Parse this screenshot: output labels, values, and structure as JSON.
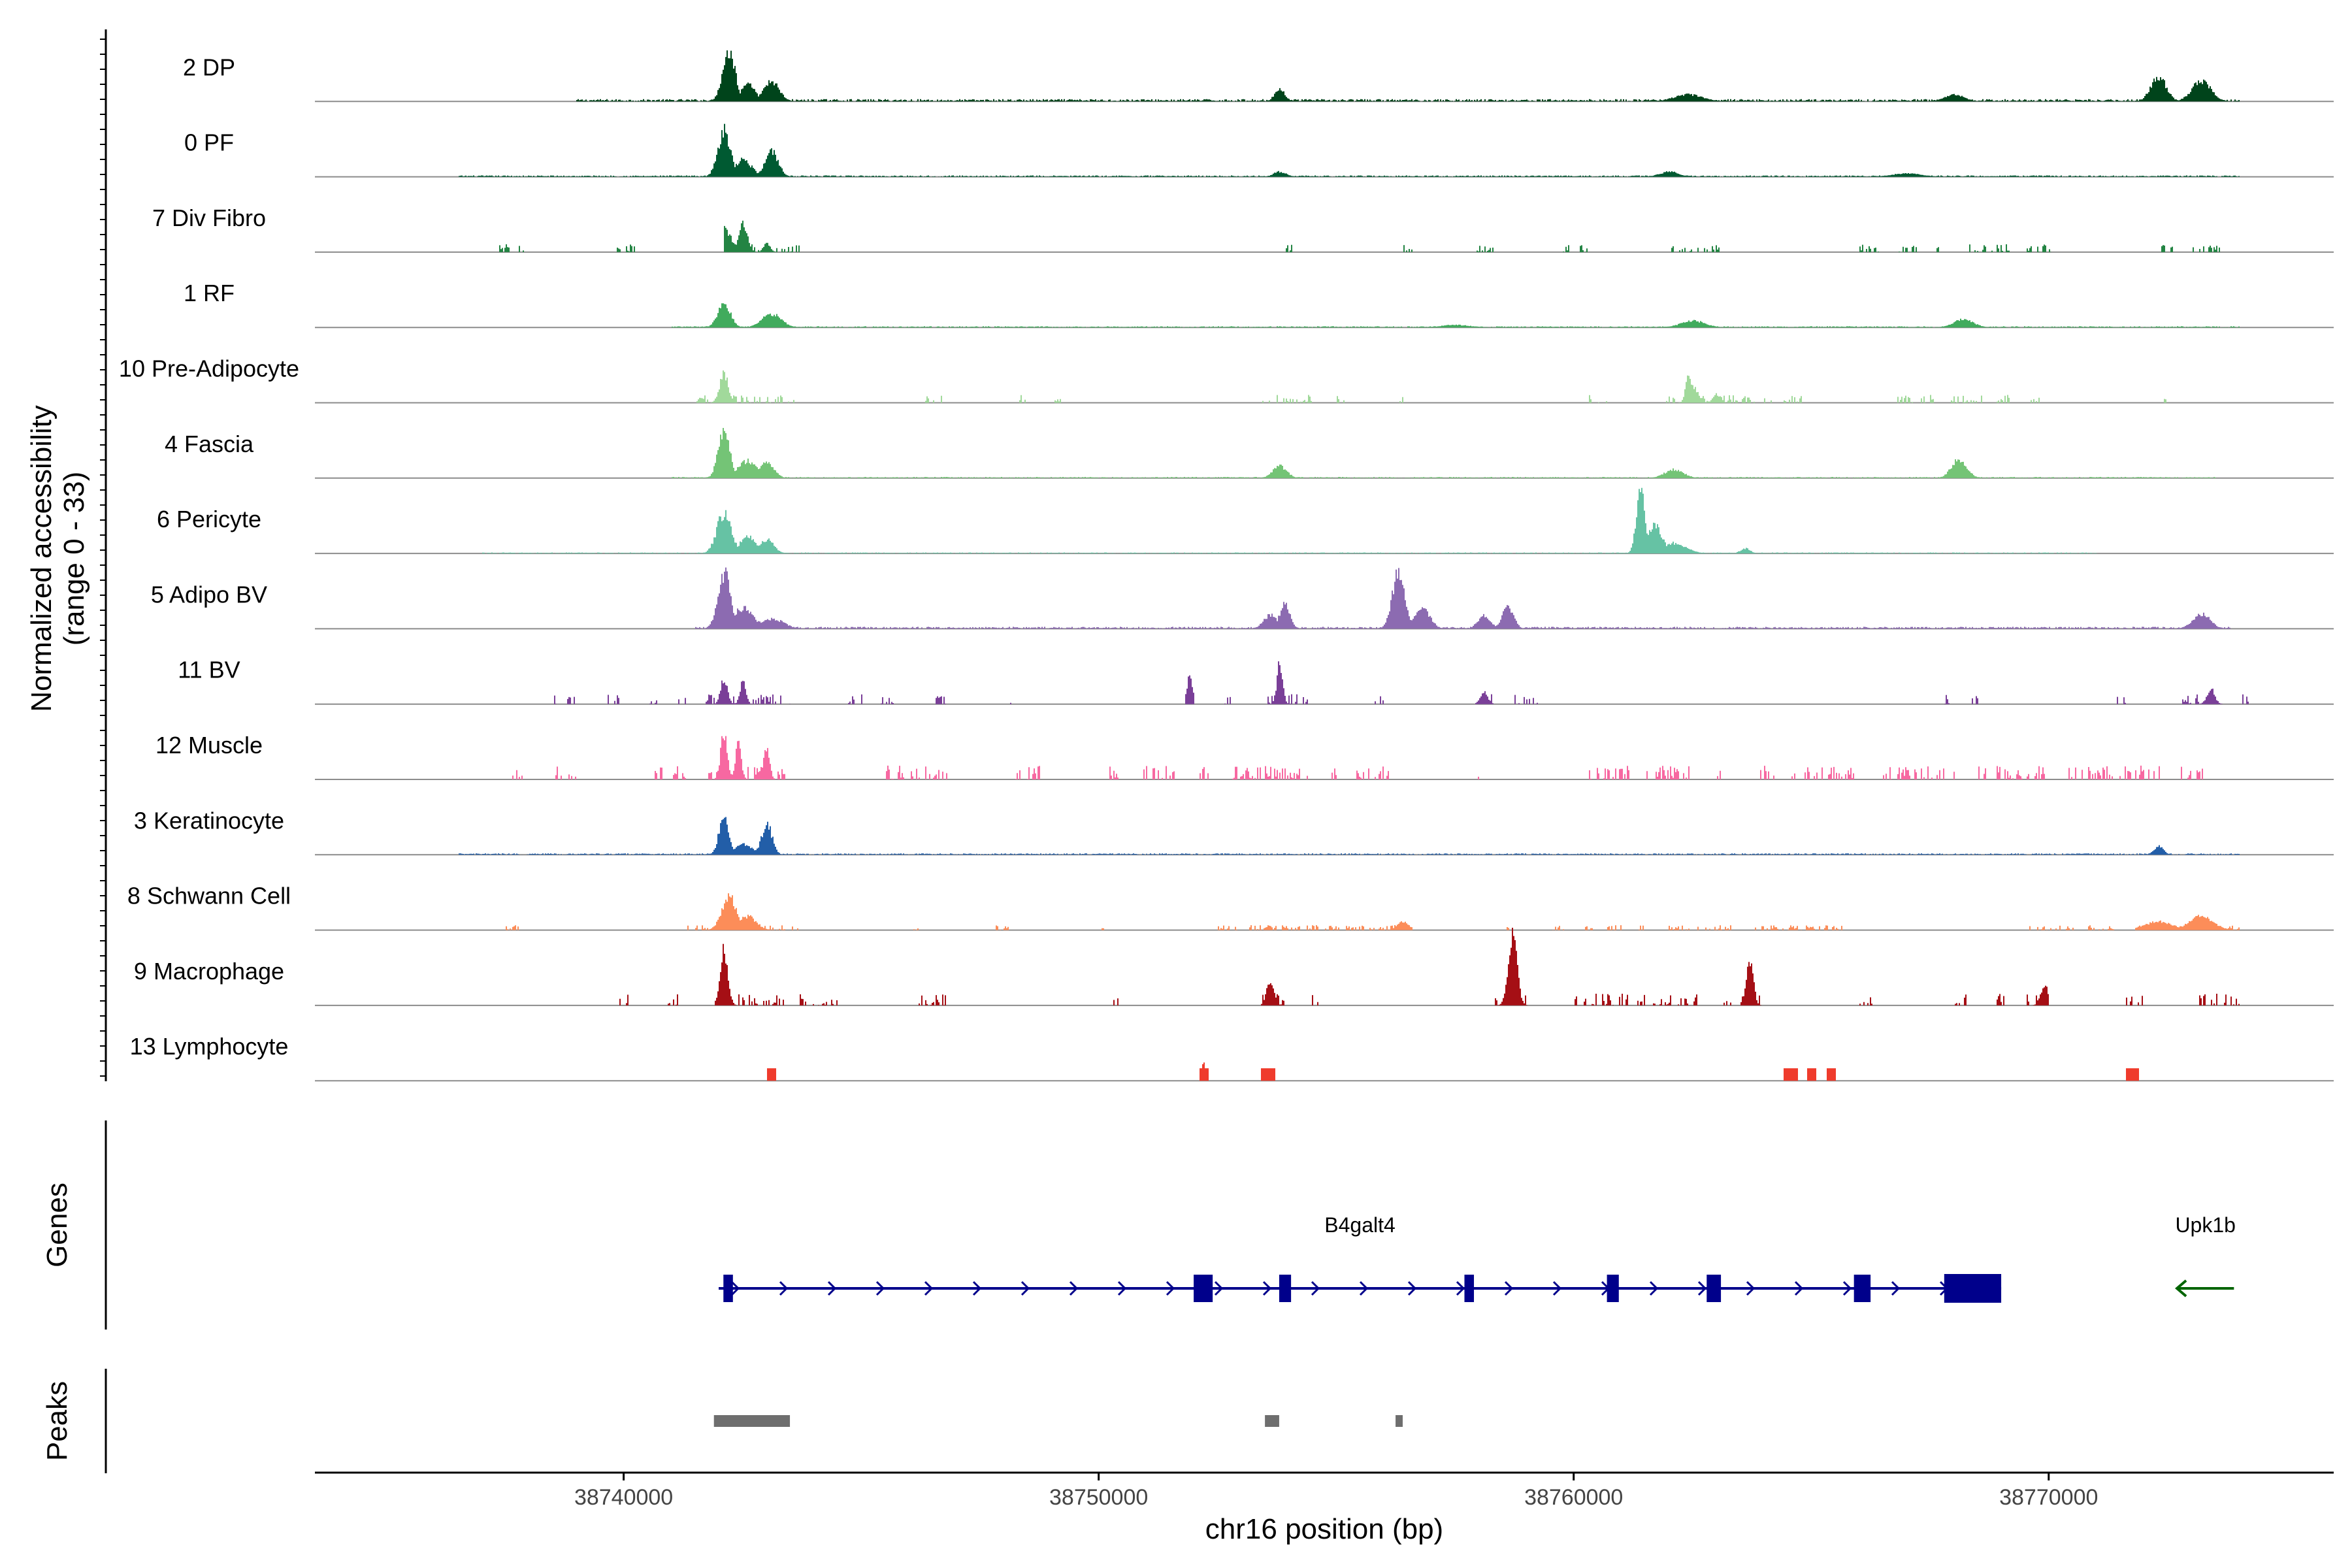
{
  "chart_data": {
    "type": "area",
    "title": "",
    "y_axis_label": "Normalized accessibility",
    "y_axis_sublabel": "(range 0 - 33)",
    "ylim": [
      0,
      33
    ],
    "x_axis_label": "chr16 position (bp)",
    "xlim": [
      38733500,
      38776000
    ],
    "x_ticks": [
      {
        "value": 38740000,
        "label": "38740000"
      },
      {
        "value": 38750000,
        "label": "38750000"
      },
      {
        "value": 38760000,
        "label": "38760000"
      },
      {
        "value": 38770000,
        "label": "38770000"
      }
    ],
    "tracks": [
      {
        "name": "2 DP",
        "color": "#00441b",
        "peaks": [
          [
            38742200,
            30,
            130
          ],
          [
            38742600,
            10,
            150
          ],
          [
            38743100,
            12,
            160
          ],
          [
            38753800,
            7,
            110
          ],
          [
            38772300,
            15,
            160
          ],
          [
            38773200,
            12,
            200
          ],
          [
            38762400,
            4,
            300
          ],
          [
            38768000,
            4,
            200
          ]
        ],
        "regions": [
          [
            38739000,
            38774000
          ]
        ],
        "noise": 1.2,
        "sparse": false
      },
      {
        "name": "0 PF",
        "color": "#005a32",
        "peaks": [
          [
            38742100,
            27,
            130
          ],
          [
            38742500,
            10,
            180
          ],
          [
            38743100,
            15,
            140
          ],
          [
            38753800,
            3,
            130
          ],
          [
            38762000,
            3,
            200
          ],
          [
            38767000,
            2,
            300
          ]
        ],
        "regions": [
          [
            38736500,
            38774000
          ]
        ],
        "noise": 0.7,
        "sparse": false
      },
      {
        "name": "7 Div Fibro",
        "color": "#238443",
        "peaks": [
          [
            38742100,
            14,
            150
          ],
          [
            38742500,
            16,
            90
          ],
          [
            38743000,
            5,
            70
          ]
        ],
        "regions": [
          [
            38737300,
            38737900
          ],
          [
            38739800,
            38740300
          ],
          [
            38742100,
            38743700
          ],
          [
            38753900,
            38754050
          ],
          [
            38756400,
            38756600
          ],
          [
            38757900,
            38758300
          ],
          [
            38759700,
            38760300
          ],
          [
            38762000,
            38763100
          ],
          [
            38766000,
            38766400
          ],
          [
            38766800,
            38767200
          ],
          [
            38767600,
            38767900
          ],
          [
            38768300,
            38769200
          ],
          [
            38769500,
            38770100
          ],
          [
            38772300,
            38772600
          ],
          [
            38773000,
            38773600
          ]
        ],
        "noise": 4,
        "sparse": true
      },
      {
        "name": "1 RF",
        "color": "#41ab5d",
        "peaks": [
          [
            38742100,
            15,
            130
          ],
          [
            38743100,
            8,
            200
          ],
          [
            38762500,
            4,
            250
          ],
          [
            38768200,
            5,
            200
          ],
          [
            38757500,
            1.5,
            300
          ]
        ],
        "regions": [
          [
            38741000,
            38774000
          ]
        ],
        "noise": 0.6,
        "sparse": false
      },
      {
        "name": "10 Pre-Adipocyte",
        "color": "#a1d99b",
        "peaks": [
          [
            38742100,
            17,
            90
          ],
          [
            38762400,
            15,
            60
          ],
          [
            38762500,
            10,
            100
          ],
          [
            38763000,
            5,
            80
          ]
        ],
        "regions": [
          [
            38741500,
            38743600
          ],
          [
            38746300,
            38746700
          ],
          [
            38748300,
            38748500
          ],
          [
            38749000,
            38749200
          ],
          [
            38753400,
            38754500
          ],
          [
            38755000,
            38755200
          ],
          [
            38756300,
            38756500
          ],
          [
            38760300,
            38760800
          ],
          [
            38761900,
            38763800
          ],
          [
            38764000,
            38764800
          ],
          [
            38766800,
            38767600
          ],
          [
            38767900,
            38768600
          ],
          [
            38768900,
            38769200
          ],
          [
            38769600,
            38769800
          ],
          [
            38772400,
            38772600
          ]
        ],
        "noise": 4,
        "sparse": true
      },
      {
        "name": "4 Fascia",
        "color": "#74c476",
        "peaks": [
          [
            38742100,
            28,
            120
          ],
          [
            38742600,
            10,
            200
          ],
          [
            38743000,
            9,
            150
          ],
          [
            38753800,
            7,
            150
          ],
          [
            38762100,
            5,
            200
          ],
          [
            38768100,
            11,
            160
          ]
        ],
        "regions": [
          [
            38741000,
            38773500
          ]
        ],
        "noise": 0.6,
        "sparse": false
      },
      {
        "name": "6 Pericyte",
        "color": "#66c2a4",
        "peaks": [
          [
            38742100,
            24,
            150
          ],
          [
            38742600,
            10,
            160
          ],
          [
            38743000,
            8,
            150
          ],
          [
            38761400,
            38,
            90
          ],
          [
            38761700,
            16,
            150
          ],
          [
            38762100,
            6,
            250
          ],
          [
            38763600,
            3,
            100
          ]
        ],
        "regions": [
          [
            38737000,
            38771000
          ]
        ],
        "noise": 0.5,
        "sparse": false
      },
      {
        "name": "5 Adipo BV",
        "color": "#8c6bb1",
        "peaks": [
          [
            38742100,
            33,
            130
          ],
          [
            38742500,
            12,
            220
          ],
          [
            38743100,
            6,
            250
          ],
          [
            38753600,
            8,
            140
          ],
          [
            38753900,
            14,
            110
          ],
          [
            38756300,
            34,
            130
          ],
          [
            38756800,
            12,
            160
          ],
          [
            38758100,
            8,
            130
          ],
          [
            38758600,
            13,
            120
          ],
          [
            38773200,
            9,
            180
          ]
        ],
        "regions": [
          [
            38741500,
            38773800
          ]
        ],
        "noise": 1,
        "sparse": false
      },
      {
        "name": "11 BV",
        "color": "#7a3f98",
        "peaks": [
          [
            38742100,
            15,
            70
          ],
          [
            38742500,
            14,
            60
          ],
          [
            38751900,
            16,
            60
          ],
          [
            38753800,
            24,
            60
          ],
          [
            38758100,
            7,
            80
          ],
          [
            38773400,
            9,
            80
          ]
        ],
        "regions": [
          [
            38738500,
            38739000
          ],
          [
            38739600,
            38739900
          ],
          [
            38740500,
            38740700
          ],
          [
            38741100,
            38741300
          ],
          [
            38741700,
            38743500
          ],
          [
            38744700,
            38745000
          ],
          [
            38745400,
            38745700
          ],
          [
            38746500,
            38746800
          ],
          [
            38748000,
            38748200
          ],
          [
            38751800,
            38752000
          ],
          [
            38752600,
            38752800
          ],
          [
            38753400,
            38754400
          ],
          [
            38755800,
            38756000
          ],
          [
            38757900,
            38758300
          ],
          [
            38758700,
            38759300
          ],
          [
            38767700,
            38767900
          ],
          [
            38768300,
            38768500
          ],
          [
            38771400,
            38771600
          ],
          [
            38772800,
            38773800
          ],
          [
            38774000,
            38774200
          ]
        ],
        "noise": 5,
        "sparse": true
      },
      {
        "name": "12 Muscle",
        "color": "#f768a1",
        "peaks": [
          [
            38742100,
            28,
            70
          ],
          [
            38742400,
            22,
            60
          ],
          [
            38743000,
            20,
            60
          ]
        ],
        "regions": [
          [
            38737600,
            38738000
          ],
          [
            38738300,
            38739000
          ],
          [
            38740600,
            38740800
          ],
          [
            38741000,
            38741300
          ],
          [
            38741700,
            38743400
          ],
          [
            38745500,
            38746800
          ],
          [
            38748200,
            38748800
          ],
          [
            38750200,
            38750400
          ],
          [
            38750900,
            38751600
          ],
          [
            38752100,
            38752300
          ],
          [
            38752800,
            38754400
          ],
          [
            38754900,
            38755000
          ],
          [
            38755400,
            38756200
          ],
          [
            38757800,
            38758000
          ],
          [
            38760300,
            38761200
          ],
          [
            38761500,
            38762500
          ],
          [
            38762800,
            38763100
          ],
          [
            38763900,
            38764200
          ],
          [
            38764500,
            38765900
          ],
          [
            38766500,
            38768000
          ],
          [
            38768400,
            38768700
          ],
          [
            38768900,
            38769900
          ],
          [
            38770400,
            38772400
          ],
          [
            38772700,
            38773300
          ]
        ],
        "noise": 7,
        "sparse": true
      },
      {
        "name": "3 Keratinocyte",
        "color": "#225ea8",
        "peaks": [
          [
            38742100,
            24,
            100
          ],
          [
            38742500,
            6,
            200
          ],
          [
            38743000,
            18,
            110
          ],
          [
            38772300,
            5,
            100
          ]
        ],
        "regions": [
          [
            38736500,
            38774000
          ]
        ],
        "noise": 0.7,
        "sparse": false
      },
      {
        "name": "8 Schwann Cell",
        "color": "#fc8d59",
        "peaks": [
          [
            38742200,
            20,
            150
          ],
          [
            38742600,
            8,
            180
          ],
          [
            38773200,
            8,
            250
          ],
          [
            38772300,
            5,
            300
          ],
          [
            38756400,
            5,
            120
          ]
        ],
        "regions": [
          [
            38737500,
            38737800
          ],
          [
            38741300,
            38743700
          ],
          [
            38746000,
            38746200
          ],
          [
            38747800,
            38748100
          ],
          [
            38750000,
            38750100
          ],
          [
            38752500,
            38756600
          ],
          [
            38758500,
            38758700
          ],
          [
            38759500,
            38759800
          ],
          [
            38760200,
            38760400
          ],
          [
            38760700,
            38761000
          ],
          [
            38761300,
            38761500
          ],
          [
            38761900,
            38763300
          ],
          [
            38763800,
            38765700
          ],
          [
            38769500,
            38770500
          ],
          [
            38770800,
            38771400
          ],
          [
            38771800,
            38774000
          ]
        ],
        "noise": 2.5,
        "sparse": true
      },
      {
        "name": "9 Macrophage",
        "color": "#a50f15",
        "peaks": [
          [
            38742100,
            33,
            80
          ],
          [
            38753600,
            14,
            80
          ],
          [
            38758700,
            44,
            90
          ],
          [
            38763700,
            28,
            70
          ],
          [
            38769900,
            12,
            80
          ]
        ],
        "regions": [
          [
            38739900,
            38740100
          ],
          [
            38740800,
            38741300
          ],
          [
            38741900,
            38743400
          ],
          [
            38743700,
            38744500
          ],
          [
            38746200,
            38746800
          ],
          [
            38750200,
            38750400
          ],
          [
            38753400,
            38753900
          ],
          [
            38754400,
            38754600
          ],
          [
            38758300,
            38759000
          ],
          [
            38760000,
            38762600
          ],
          [
            38762800,
            38763300
          ],
          [
            38763500,
            38764000
          ],
          [
            38766000,
            38766300
          ],
          [
            38768000,
            38768300
          ],
          [
            38768900,
            38769100
          ],
          [
            38769500,
            38770000
          ],
          [
            38771600,
            38772000
          ],
          [
            38773100,
            38774000
          ]
        ],
        "noise": 6,
        "sparse": true
      },
      {
        "name": "13 Lymphocyte",
        "color": "#ef3b2c",
        "peaks": [
          [
            38752200,
            13,
            30
          ]
        ],
        "regions": [
          [
            38743000,
            38743200
          ],
          [
            38752100,
            38752300
          ],
          [
            38753400,
            38753700
          ],
          [
            38764400,
            38764700
          ],
          [
            38764900,
            38765100
          ],
          [
            38765300,
            38765500
          ],
          [
            38771600,
            38771900
          ]
        ],
        "noise": 7,
        "sparse": true,
        "flat": true
      }
    ],
    "genes_label": "Genes",
    "genes": [
      {
        "name": "B4galt4",
        "start": 38742000,
        "end": 38769000,
        "strand": "+",
        "color": "#00008b",
        "exons": [
          [
            38742100,
            38742300
          ],
          [
            38752000,
            38752400
          ],
          [
            38753800,
            38754050
          ],
          [
            38757700,
            38757900
          ],
          [
            38760700,
            38760950
          ],
          [
            38762800,
            38763100
          ],
          [
            38765900,
            38766250
          ],
          [
            38767800,
            38769000
          ]
        ]
      },
      {
        "name": "Upk1b",
        "start": 38772700,
        "end": 38773900,
        "strand": "-",
        "color": "#006400",
        "exons": []
      }
    ],
    "peaks_label": "Peaks",
    "peak_regions": [
      [
        38741900,
        38743500
      ],
      [
        38753500,
        38753800
      ],
      [
        38756250,
        38756400
      ]
    ]
  }
}
